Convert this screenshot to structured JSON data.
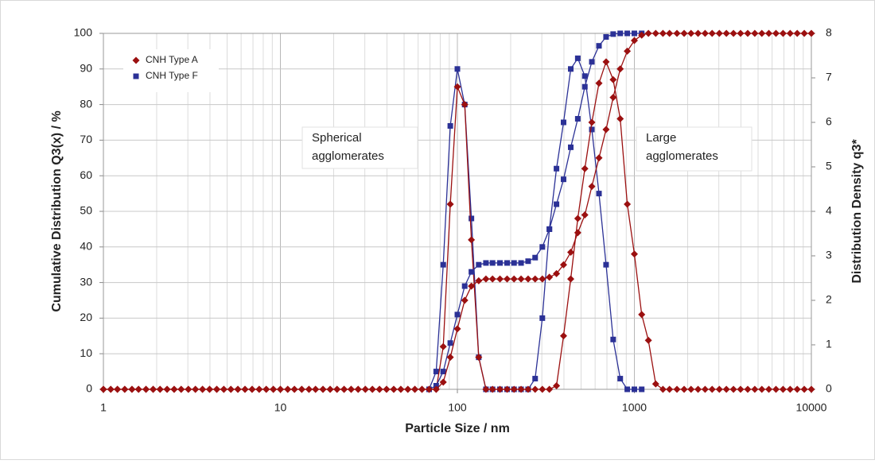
{
  "chart_data": {
    "type": "line",
    "x_label": "Particle Size / nm",
    "y_label": "Cumulative Distribution Q3(x) / %",
    "y2_label": "Distribution Density q3*",
    "xlog": true,
    "grid": true,
    "legend": "top-left",
    "xlim": [
      1,
      10000
    ],
    "xticks": [
      1,
      10,
      100,
      1000,
      10000
    ],
    "xminor_ticks": [
      2,
      3,
      4,
      5,
      6,
      7,
      8,
      9,
      20,
      30,
      40,
      50,
      60,
      70,
      80,
      90,
      200,
      300,
      400,
      500,
      600,
      700,
      800,
      900,
      2000,
      3000,
      4000,
      5000,
      6000,
      7000,
      8000,
      9000
    ],
    "ylim": [
      0,
      100
    ],
    "yticks": [
      0,
      10,
      20,
      30,
      40,
      50,
      60,
      70,
      80,
      90,
      100
    ],
    "y2lim": [
      0,
      8
    ],
    "y2ticks": [
      0,
      1,
      2,
      3,
      4,
      5,
      6,
      7,
      8
    ],
    "annotations": [
      {
        "lines": [
          "Spherical",
          "agglomerates"
        ]
      },
      {
        "lines": [
          "Large",
          "agglomerates"
        ]
      }
    ],
    "x": [
      1,
      1.1,
      1.2,
      1.32,
      1.45,
      1.58,
      1.74,
      1.91,
      2.09,
      2.29,
      2.51,
      2.75,
      3.02,
      3.31,
      3.63,
      3.98,
      4.37,
      4.79,
      5.25,
      5.75,
      6.31,
      6.92,
      7.59,
      8.32,
      9.12,
      10,
      11,
      12,
      13.2,
      14.5,
      15.8,
      17.4,
      19.1,
      20.9,
      22.9,
      25.1,
      27.5,
      30.2,
      33.1,
      36.3,
      39.8,
      43.7,
      47.9,
      52.5,
      57.5,
      63.1,
      69.2,
      75.9,
      83.2,
      91.2,
      100,
      110,
      120,
      132,
      145,
      158,
      174,
      191,
      209,
      229,
      251,
      275,
      302,
      331,
      363,
      398,
      437,
      479,
      525,
      575,
      631,
      692,
      759,
      832,
      912,
      1000,
      1100,
      1200,
      1320,
      1450,
      1580,
      1740,
      1910,
      2090,
      2290,
      2510,
      2750,
      3020,
      3310,
      3630,
      3980,
      4370,
      4790,
      5250,
      5750,
      6310,
      6920,
      7590,
      8320,
      9120,
      10000
    ],
    "series": [
      {
        "name": "CNH Type A",
        "color": "#9b1010",
        "marker": "diamond",
        "axis": "y",
        "values": [
          0,
          0,
          0,
          0,
          0,
          0,
          0,
          0,
          0,
          0,
          0,
          0,
          0,
          0,
          0,
          0,
          0,
          0,
          0,
          0,
          0,
          0,
          0,
          0,
          0,
          0,
          0,
          0,
          0,
          0,
          0,
          0,
          0,
          0,
          0,
          0,
          0,
          0,
          0,
          0,
          0,
          0,
          0,
          0,
          0,
          0,
          0,
          0,
          2,
          9,
          17,
          25,
          29,
          30.5,
          31,
          31,
          31,
          31,
          31,
          31,
          31,
          31,
          31,
          31.5,
          32.5,
          35,
          38.5,
          44,
          49,
          57,
          65,
          73,
          82,
          90,
          95,
          98,
          99.5,
          100,
          100,
          100,
          100,
          100,
          100,
          100,
          100,
          100,
          100,
          100,
          100,
          100,
          100,
          100,
          100,
          100,
          100,
          100,
          100,
          100,
          100,
          100,
          100
        ]
      },
      {
        "name": "CNH Type F",
        "color": "#2b3196",
        "marker": "square",
        "axis": "y",
        "values": [
          null,
          null,
          null,
          null,
          null,
          null,
          null,
          null,
          null,
          null,
          null,
          null,
          null,
          null,
          null,
          null,
          null,
          null,
          null,
          null,
          null,
          null,
          null,
          null,
          null,
          null,
          null,
          null,
          null,
          null,
          null,
          null,
          null,
          null,
          null,
          null,
          null,
          null,
          null,
          null,
          null,
          null,
          null,
          null,
          null,
          null,
          0,
          1,
          5,
          13,
          21,
          29,
          33,
          35,
          35.5,
          35.5,
          35.5,
          35.5,
          35.5,
          35.5,
          36,
          37,
          40,
          45,
          52,
          59,
          68,
          76,
          85,
          92,
          96.5,
          99,
          99.8,
          100,
          100,
          100,
          100,
          null,
          null,
          null,
          null,
          null,
          null,
          null,
          null,
          null,
          null,
          null,
          null,
          null,
          null,
          null,
          null,
          null,
          null,
          null,
          null,
          null,
          null,
          null,
          null
        ]
      },
      {
        "color": "#9b1010",
        "marker": "diamond",
        "axis": "y2",
        "values": [
          0,
          0,
          0,
          0,
          0,
          0,
          0,
          0,
          0,
          0,
          0,
          0,
          0,
          0,
          0,
          0,
          0,
          0,
          0,
          0,
          0,
          0,
          0,
          0,
          0,
          0,
          0,
          0,
          0,
          0,
          0,
          0,
          0,
          0,
          0,
          0,
          0,
          0,
          0,
          0,
          0,
          0,
          0,
          0,
          0,
          0,
          0,
          0,
          0.96,
          4.16,
          6.8,
          6.4,
          3.36,
          0.72,
          0,
          0,
          0,
          0,
          0,
          0,
          0,
          0,
          0,
          0,
          0.08,
          1.2,
          2.48,
          3.84,
          4.96,
          6,
          6.88,
          7.36,
          6.96,
          6.08,
          4.16,
          3.04,
          1.68,
          1.1,
          0.12,
          0,
          0,
          0,
          0,
          0,
          0,
          0,
          0,
          0,
          0,
          0,
          0,
          0,
          0,
          0,
          0,
          0,
          0,
          0,
          0,
          0,
          0
        ]
      },
      {
        "color": "#2b3196",
        "marker": "square",
        "axis": "y2",
        "values": [
          null,
          null,
          null,
          null,
          null,
          null,
          null,
          null,
          null,
          null,
          null,
          null,
          null,
          null,
          null,
          null,
          null,
          null,
          null,
          null,
          null,
          null,
          null,
          null,
          null,
          null,
          null,
          null,
          null,
          null,
          null,
          null,
          null,
          null,
          null,
          null,
          null,
          null,
          null,
          null,
          null,
          null,
          null,
          null,
          null,
          null,
          0,
          0.4,
          2.8,
          5.92,
          7.2,
          6.4,
          3.84,
          0.72,
          0,
          0,
          0,
          0,
          0,
          0,
          0,
          0.24,
          1.6,
          3.6,
          4.96,
          6,
          7.2,
          7.44,
          7.04,
          5.84,
          4.4,
          2.8,
          1.12,
          0.24,
          0,
          0,
          0,
          null,
          null,
          null,
          null,
          null,
          null,
          null,
          null,
          null,
          null,
          null,
          null,
          null,
          null,
          null,
          null,
          null,
          null,
          null,
          null,
          null,
          null,
          null,
          null
        ]
      }
    ]
  }
}
